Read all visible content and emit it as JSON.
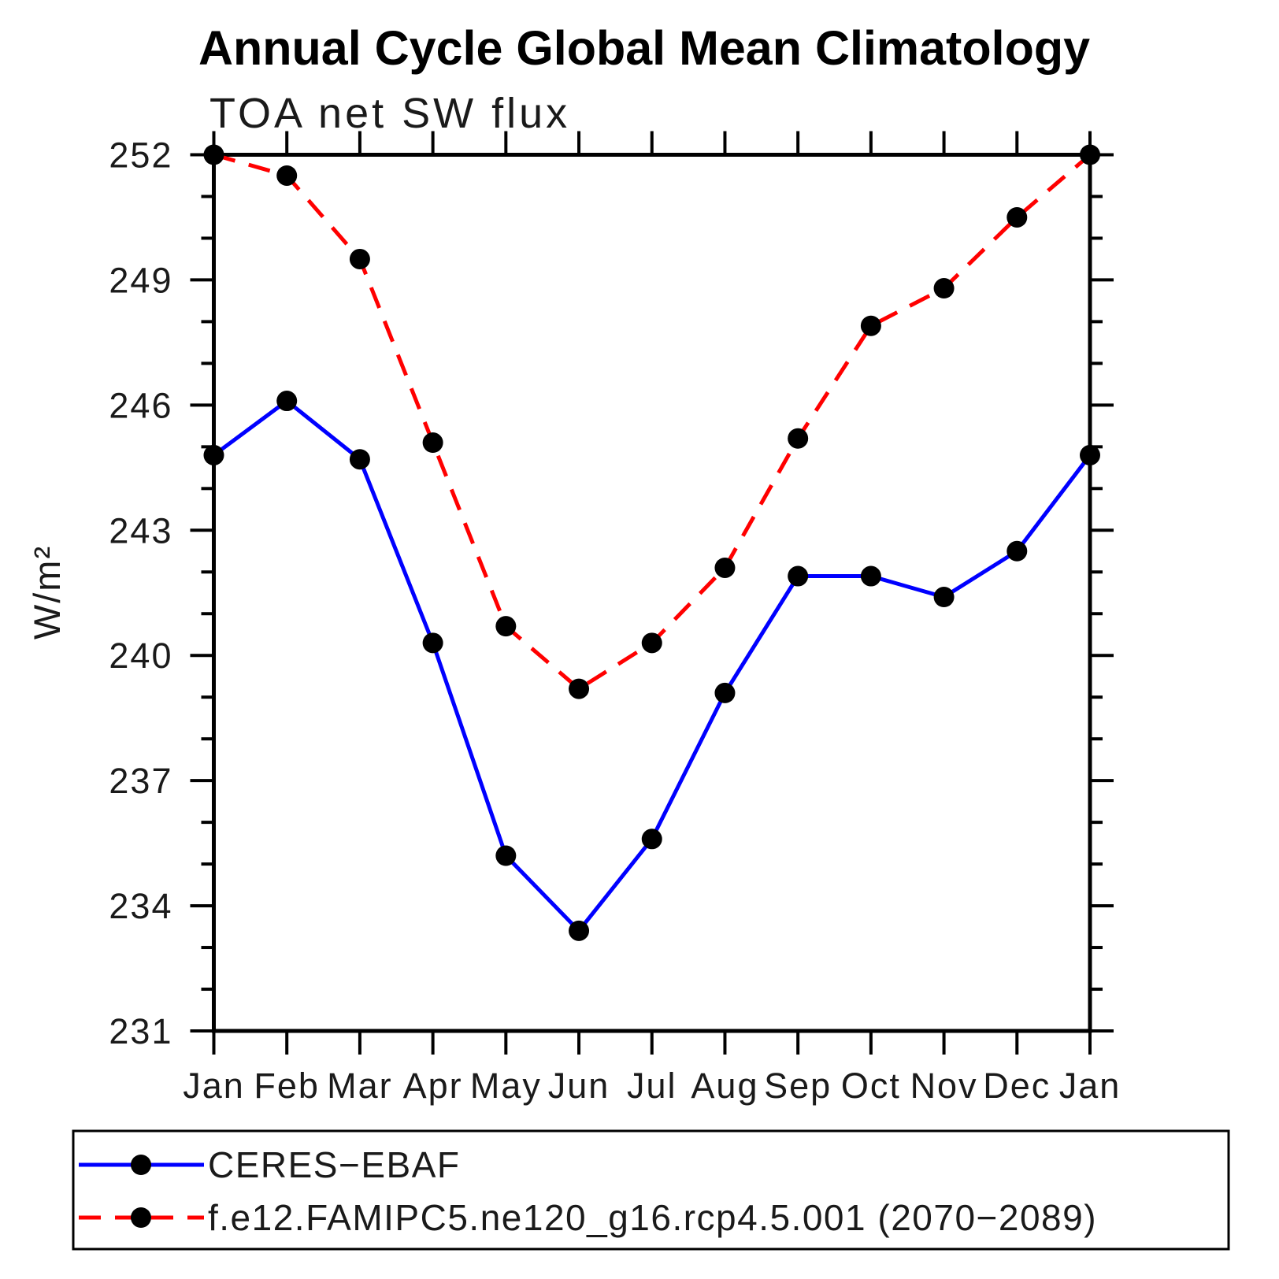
{
  "header": {
    "title": "Annual Cycle Global Mean Climatology"
  },
  "chart_data": {
    "type": "line",
    "title": "Annual Cycle Global Mean Climatology",
    "subtitle": "TOA net SW flux",
    "ylabel": "W/m²",
    "xlabel": "",
    "categories": [
      "Jan",
      "Feb",
      "Mar",
      "Apr",
      "May",
      "Jun",
      "Jul",
      "Aug",
      "Sep",
      "Oct",
      "Nov",
      "Dec",
      "Jan"
    ],
    "series": [
      {
        "name": "CERES−EBAF",
        "color": "#0000ff",
        "line_style": "solid",
        "marker": "circle",
        "marker_color": "#000000",
        "values": [
          244.8,
          246.1,
          244.7,
          240.3,
          235.2,
          233.4,
          235.6,
          239.1,
          241.9,
          241.9,
          241.4,
          242.5,
          244.8
        ]
      },
      {
        "name": "f.e12.FAMIPC5.ne120_g16.rcp4.5.001 (2070−2089)",
        "color": "#ff0000",
        "line_style": "dashed",
        "marker": "circle",
        "marker_color": "#000000",
        "values": [
          252.0,
          251.5,
          249.5,
          245.1,
          240.7,
          239.2,
          240.3,
          242.1,
          245.2,
          247.9,
          248.8,
          250.5,
          252.0
        ]
      }
    ],
    "ylim": [
      231,
      252
    ],
    "ytick_major_step": 3,
    "ytick_minor_step": 1,
    "ytick_labels": [
      "231",
      "234",
      "237",
      "240",
      "243",
      "246",
      "249",
      "252"
    ],
    "grid": false,
    "legend_position": "bottom"
  }
}
